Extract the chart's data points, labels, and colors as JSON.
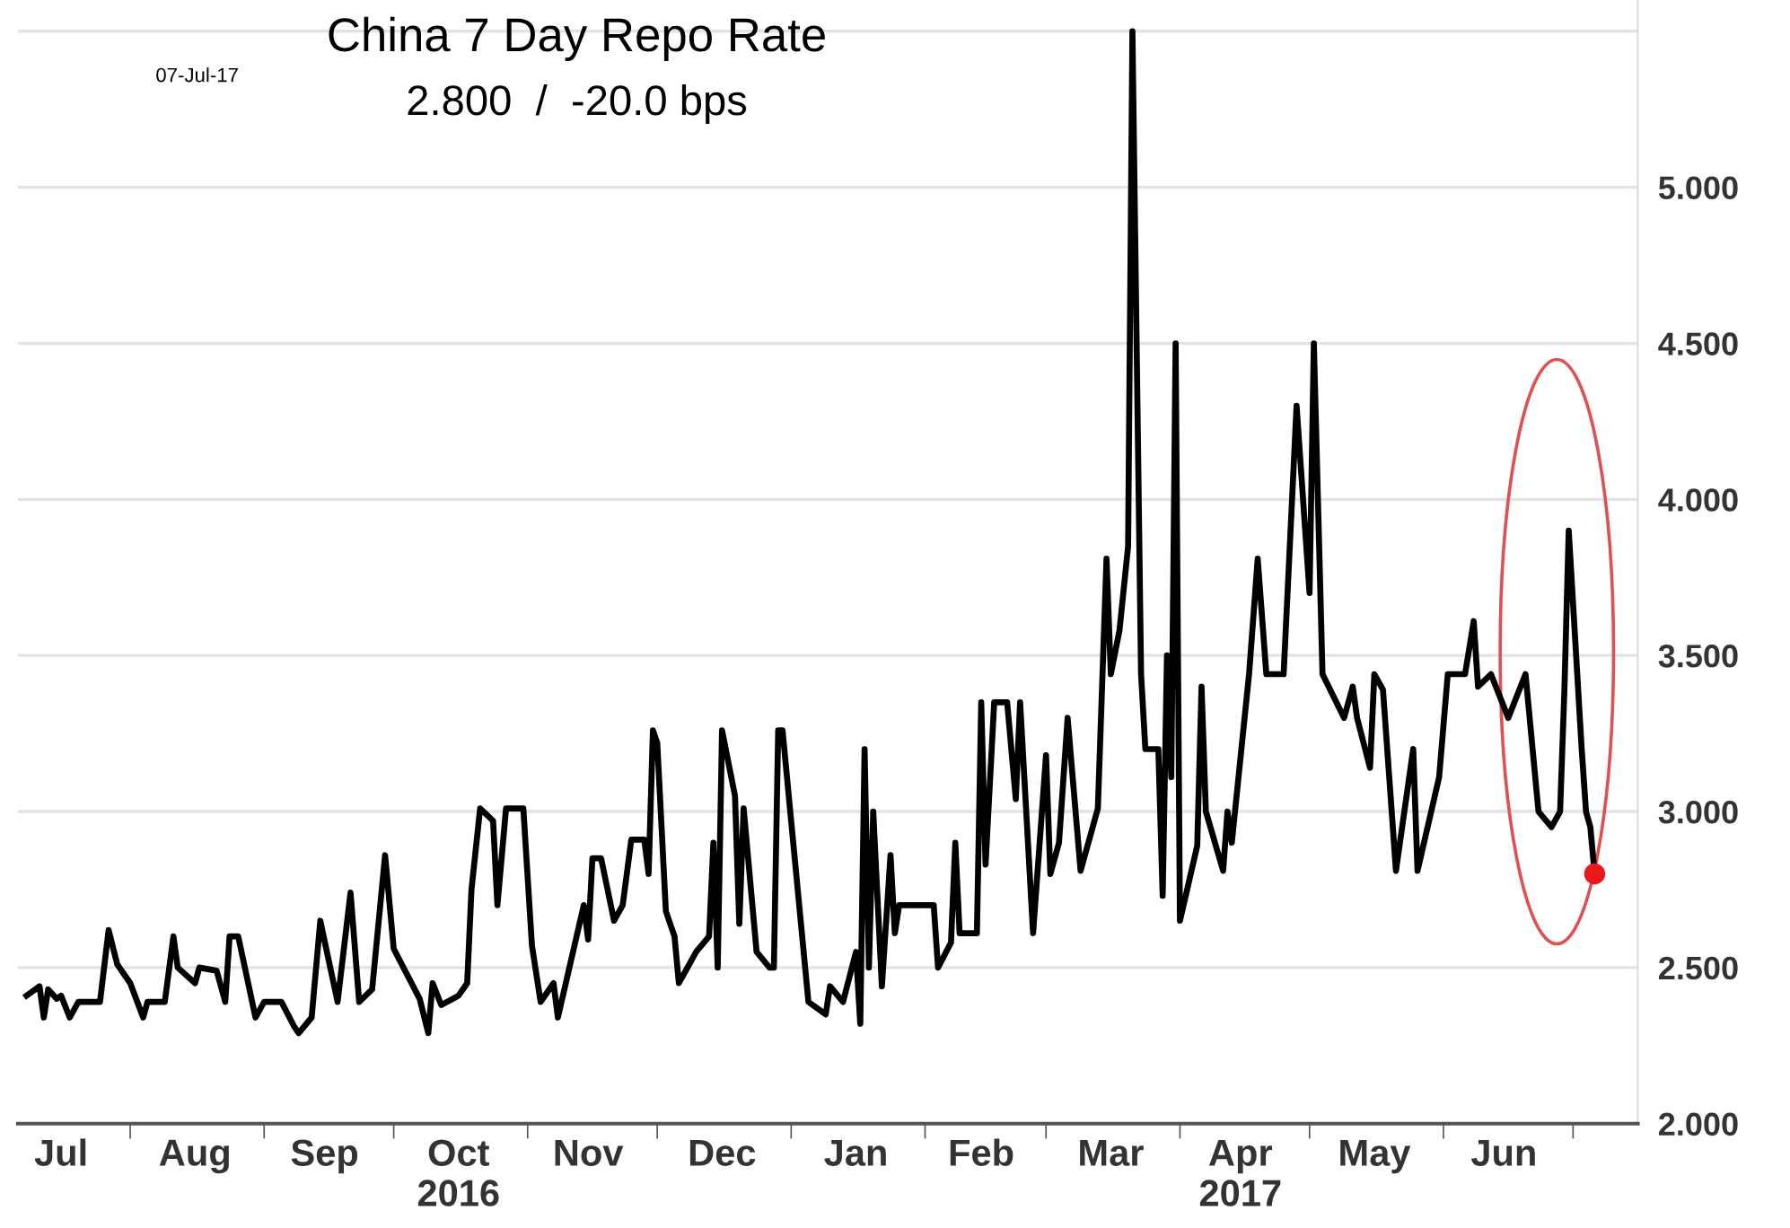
{
  "chart_data": {
    "type": "line",
    "title": "China 7 Day Repo Rate",
    "subtitle": "2.800  /  -20.0 bps",
    "annotations": [
      "07-Jul-17"
    ],
    "series": [
      {
        "color": "#000000",
        "marker": "none",
        "x": [
          "2016-07-08",
          "2016-07-11",
          "2016-07-12",
          "2016-07-13",
          "2016-07-15",
          "2016-07-16",
          "2016-07-18",
          "2016-07-20",
          "2016-07-25",
          "2016-07-27",
          "2016-07-29",
          "2016-08-01",
          "2016-08-04",
          "2016-08-05",
          "2016-08-09",
          "2016-08-11",
          "2016-08-12",
          "2016-08-16",
          "2016-08-17",
          "2016-08-21",
          "2016-08-23",
          "2016-08-24",
          "2016-08-26",
          "2016-08-30",
          "2016-09-01",
          "2016-09-05",
          "2016-09-08",
          "2016-09-09",
          "2016-09-12",
          "2016-09-14",
          "2016-09-18",
          "2016-09-21",
          "2016-09-23",
          "2016-09-26",
          "2016-09-29",
          "2016-10-01",
          "2016-10-07",
          "2016-10-09",
          "2016-10-10",
          "2016-10-12",
          "2016-10-16",
          "2016-10-18",
          "2016-10-19",
          "2016-10-21",
          "2016-10-24",
          "2016-10-25",
          "2016-10-27",
          "2016-10-31",
          "2016-11-02",
          "2016-11-04",
          "2016-11-07",
          "2016-11-08",
          "2016-11-14",
          "2016-11-15",
          "2016-11-16",
          "2016-11-18",
          "2016-11-21",
          "2016-11-23",
          "2016-11-25",
          "2016-11-28",
          "2016-11-29",
          "2016-11-30",
          "2016-12-01",
          "2016-12-03",
          "2016-12-05",
          "2016-12-06",
          "2016-12-08",
          "2016-12-10",
          "2016-12-13",
          "2016-12-14",
          "2016-12-15",
          "2016-12-16",
          "2016-12-19",
          "2016-12-20",
          "2016-12-21",
          "2016-12-24",
          "2016-12-27",
          "2016-12-28",
          "2016-12-29",
          "2016-12-30",
          "2017-01-05",
          "2017-01-09",
          "2017-01-10",
          "2017-01-13",
          "2017-01-16",
          "2017-01-17",
          "2017-01-18",
          "2017-01-19",
          "2017-01-20",
          "2017-01-22",
          "2017-01-24",
          "2017-01-25",
          "2017-01-26",
          "2017-02-03",
          "2017-02-04",
          "2017-02-07",
          "2017-02-08",
          "2017-02-09",
          "2017-02-13",
          "2017-02-14",
          "2017-02-15",
          "2017-02-17",
          "2017-02-20",
          "2017-02-22",
          "2017-02-23",
          "2017-02-26",
          "2017-03-01",
          "2017-03-02",
          "2017-03-04",
          "2017-03-06",
          "2017-03-09",
          "2017-03-13",
          "2017-03-15",
          "2017-03-16",
          "2017-03-18",
          "2017-03-20",
          "2017-03-21",
          "2017-03-23",
          "2017-03-24",
          "2017-03-27",
          "2017-03-28",
          "2017-03-29",
          "2017-03-30",
          "2017-03-31",
          "2017-04-01",
          "2017-04-05",
          "2017-04-06",
          "2017-04-07",
          "2017-04-11",
          "2017-04-12",
          "2017-04-13",
          "2017-04-17",
          "2017-04-19",
          "2017-04-21",
          "2017-04-25",
          "2017-04-28",
          "2017-05-01",
          "2017-05-02",
          "2017-05-04",
          "2017-05-09",
          "2017-05-11",
          "2017-05-12",
          "2017-05-15",
          "2017-05-16",
          "2017-05-18",
          "2017-05-21",
          "2017-05-25",
          "2017-05-26",
          "2017-05-31",
          "2017-06-02",
          "2017-06-06",
          "2017-06-08",
          "2017-06-09",
          "2017-06-12",
          "2017-06-16",
          "2017-06-20",
          "2017-06-23",
          "2017-06-26",
          "2017-06-28",
          "2017-06-29",
          "2017-06-30",
          "2017-07-03",
          "2017-07-04",
          "2017-07-05",
          "2017-07-06"
        ],
        "values": [
          2.41,
          2.44,
          2.34,
          2.43,
          2.4,
          2.41,
          2.34,
          2.39,
          2.39,
          2.62,
          2.51,
          2.45,
          2.34,
          2.39,
          2.39,
          2.6,
          2.5,
          2.45,
          2.5,
          2.49,
          2.39,
          2.6,
          2.6,
          2.34,
          2.39,
          2.39,
          2.31,
          2.29,
          2.34,
          2.65,
          2.39,
          2.74,
          2.39,
          2.43,
          2.86,
          2.56,
          2.4,
          2.29,
          2.45,
          2.38,
          2.41,
          2.45,
          2.75,
          3.01,
          2.97,
          2.7,
          3.01,
          3.01,
          2.57,
          2.39,
          2.45,
          2.34,
          2.7,
          2.59,
          2.85,
          2.85,
          2.65,
          2.7,
          2.91,
          2.91,
          2.8,
          3.26,
          3.22,
          2.68,
          2.6,
          2.45,
          2.5,
          2.55,
          2.6,
          2.9,
          2.5,
          3.26,
          3.05,
          2.64,
          3.01,
          2.55,
          2.5,
          2.5,
          3.26,
          3.26,
          2.39,
          2.35,
          2.44,
          2.39,
          2.55,
          2.32,
          3.2,
          2.5,
          3.0,
          2.44,
          2.86,
          2.61,
          2.7,
          2.7,
          2.5,
          2.58,
          2.9,
          2.61,
          2.61,
          3.35,
          2.83,
          3.35,
          3.35,
          3.04,
          3.35,
          2.61,
          3.18,
          2.8,
          2.9,
          3.3,
          2.81,
          3.01,
          3.81,
          3.44,
          3.58,
          3.85,
          5.5,
          3.44,
          3.2,
          3.2,
          2.73,
          3.5,
          3.11,
          4.5,
          2.65,
          2.89,
          3.4,
          3.0,
          2.81,
          3.0,
          2.9,
          3.44,
          3.81,
          3.44,
          3.44,
          4.3,
          3.7,
          4.5,
          3.44,
          3.3,
          3.4,
          3.3,
          3.14,
          3.44,
          3.39,
          2.81,
          3.2,
          2.81,
          3.11,
          3.44,
          3.44,
          3.61,
          3.4,
          3.44,
          3.3,
          3.44,
          3.0,
          2.95,
          3.0,
          3.39,
          3.9,
          3.2,
          3.0,
          2.95,
          2.8
        ]
      },
      {
        "type": "scatter",
        "marker": "circle",
        "color": "#e8181c",
        "x": [
          "2017-07-06"
        ],
        "values": [
          2.8
        ]
      }
    ],
    "xlim": [
      "2016-07-06",
      "2017-07-16"
    ],
    "xticks": [
      {
        "value": "2016-07-16",
        "label": "Jul"
      },
      {
        "value": "2016-08-16",
        "label": "Aug"
      },
      {
        "value": "2016-09-15",
        "label": "Sep"
      },
      {
        "value": "2016-10-16",
        "label": "Oct\n2016"
      },
      {
        "value": "2016-11-15",
        "label": "Nov"
      },
      {
        "value": "2016-12-16",
        "label": "Dec"
      },
      {
        "value": "2017-01-16",
        "label": "Jan"
      },
      {
        "value": "2017-02-14",
        "label": "Feb"
      },
      {
        "value": "2017-03-16",
        "label": "Mar"
      },
      {
        "value": "2017-04-15",
        "label": "Apr\n2017"
      },
      {
        "value": "2017-05-16",
        "label": "May"
      },
      {
        "value": "2017-06-15",
        "label": "Jun"
      },
      {
        "value": "2016-08-01",
        "label": null
      },
      {
        "value": "2016-09-01",
        "label": null
      },
      {
        "value": "2016-10-01",
        "label": null
      },
      {
        "value": "2016-11-01",
        "label": null
      },
      {
        "value": "2016-12-01",
        "label": null
      },
      {
        "value": "2017-01-01",
        "label": null
      },
      {
        "value": "2017-02-01",
        "label": null
      },
      {
        "value": "2017-03-01",
        "label": null
      },
      {
        "value": "2017-04-01",
        "label": null
      },
      {
        "value": "2017-05-01",
        "label": null
      },
      {
        "value": "2017-06-01",
        "label": null
      },
      {
        "value": "2017-07-01",
        "label": null
      }
    ],
    "ylim": [
      2.0,
      5.6
    ],
    "yticks": [
      {
        "value": 2.0,
        "label": "2.000"
      },
      {
        "value": 2.5,
        "label": "2.500"
      },
      {
        "value": 3.0,
        "label": "3.000"
      },
      {
        "value": 3.5,
        "label": "3.500"
      },
      {
        "value": 4.0,
        "label": "4.000"
      },
      {
        "value": 4.5,
        "label": "4.500"
      },
      {
        "value": 5.0,
        "label": "5.000"
      },
      {
        "value": 5.5,
        "label": null
      }
    ],
    "grid": "y",
    "legend": false,
    "line_style": "solid"
  }
}
